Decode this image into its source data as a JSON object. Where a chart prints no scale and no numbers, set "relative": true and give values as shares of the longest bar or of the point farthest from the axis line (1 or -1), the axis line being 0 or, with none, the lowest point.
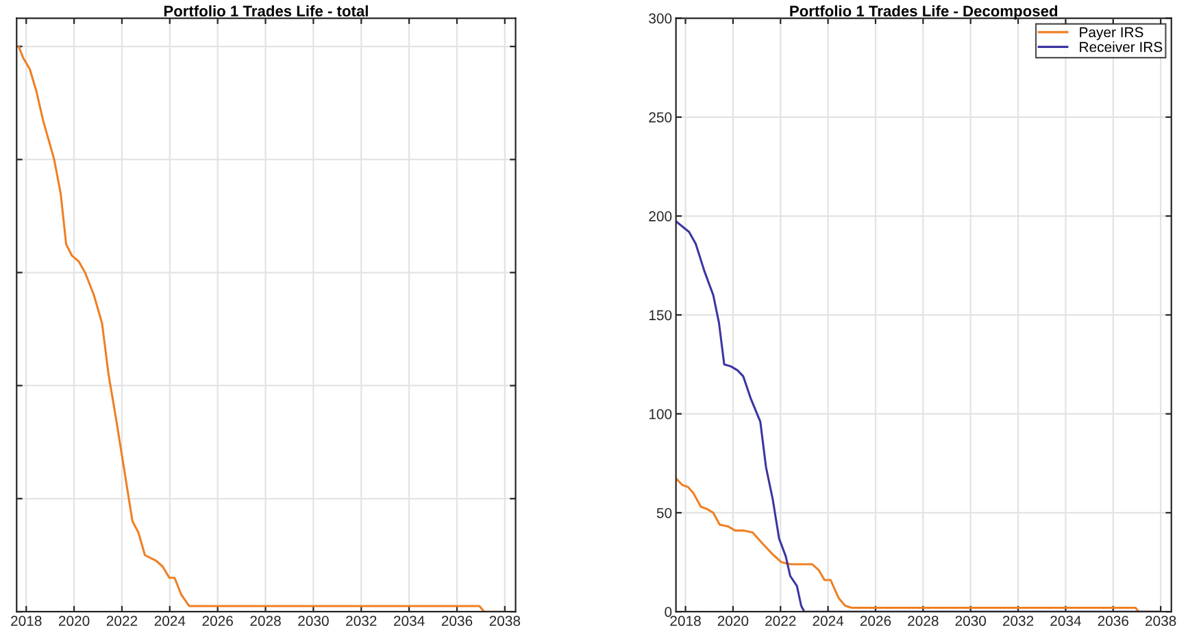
{
  "chart_data": [
    {
      "type": "line",
      "title": "Portfolio 1 Trades Life - total",
      "relative": true,
      "tick_labels": "x",
      "grid": true,
      "legend": false,
      "xlim": [
        2017.6,
        2038.45
      ],
      "xticks": [
        2018,
        2020,
        2022,
        2024,
        2026,
        2028,
        2030,
        2032,
        2034,
        2036,
        2038
      ],
      "series": [
        {
          "color": "#f07f22",
          "x": [
            2017.69,
            2017.87,
            2018.15,
            2018.43,
            2018.7,
            2019.17,
            2019.44,
            2019.67,
            2019.91,
            2020.19,
            2020.46,
            2020.83,
            2021.17,
            2021.44,
            2021.76,
            2022.44,
            2022.69,
            2022.96,
            2023.43,
            2023.7,
            2023.98,
            2024.2,
            2024.48,
            2024.81,
            2036.94,
            2037.13,
            2037.96
          ],
          "values": [
            1,
            0.98,
            0.96,
            0.92,
            0.87,
            0.8,
            0.74,
            0.65,
            0.63,
            0.62,
            0.6,
            0.56,
            0.51,
            0.42,
            0.34,
            0.16,
            0.14,
            0.1,
            0.09,
            0.08,
            0.06,
            0.06,
            0.03,
            0.01,
            0.01,
            0,
            0
          ]
        }
      ]
    },
    {
      "type": "line",
      "title": "Portfolio 1 Trades Life - Decomposed",
      "grid": true,
      "legend": "top right",
      "xlim": [
        2017.6,
        2038.45
      ],
      "xticks": [
        2018,
        2020,
        2022,
        2024,
        2026,
        2028,
        2030,
        2032,
        2034,
        2036,
        2038
      ],
      "ylim": [
        0,
        300
      ],
      "yticks": [
        0,
        50,
        100,
        150,
        200,
        250,
        300
      ],
      "series": [
        {
          "name": "Payer IRS",
          "color": "#f07f22",
          "x": [
            2017.63,
            2017.87,
            2018.11,
            2018.33,
            2018.65,
            2018.89,
            2019.17,
            2019.44,
            2019.81,
            2020.09,
            2020.46,
            2020.83,
            2021.2,
            2021.67,
            2022.04,
            2022.41,
            2022.69,
            2023.33,
            2023.61,
            2023.85,
            2024.11,
            2024.44,
            2024.72,
            2025.0,
            2036.94,
            2037.07,
            2037.96
          ],
          "values": [
            67,
            64,
            63,
            60,
            53,
            52,
            50,
            44,
            43,
            41,
            41,
            40,
            35,
            29,
            25,
            24,
            24,
            24,
            21,
            16,
            16,
            7,
            3,
            2,
            2,
            0,
            0
          ]
        },
        {
          "name": "Receiver IRS",
          "color": "#3b35a3",
          "x": [
            2017.63,
            2018.15,
            2018.43,
            2018.8,
            2019.17,
            2019.41,
            2019.63,
            2019.91,
            2020.19,
            2020.43,
            2020.74,
            2021.15,
            2021.39,
            2021.67,
            2021.94,
            2022.22,
            2022.41,
            2022.69,
            2022.87,
            2023.0,
            2037.96
          ],
          "values": [
            197,
            192,
            186,
            172,
            160,
            146,
            125,
            124,
            122,
            119,
            108,
            96,
            73,
            57,
            37,
            28,
            18,
            13,
            3,
            0,
            0
          ]
        }
      ]
    }
  ]
}
